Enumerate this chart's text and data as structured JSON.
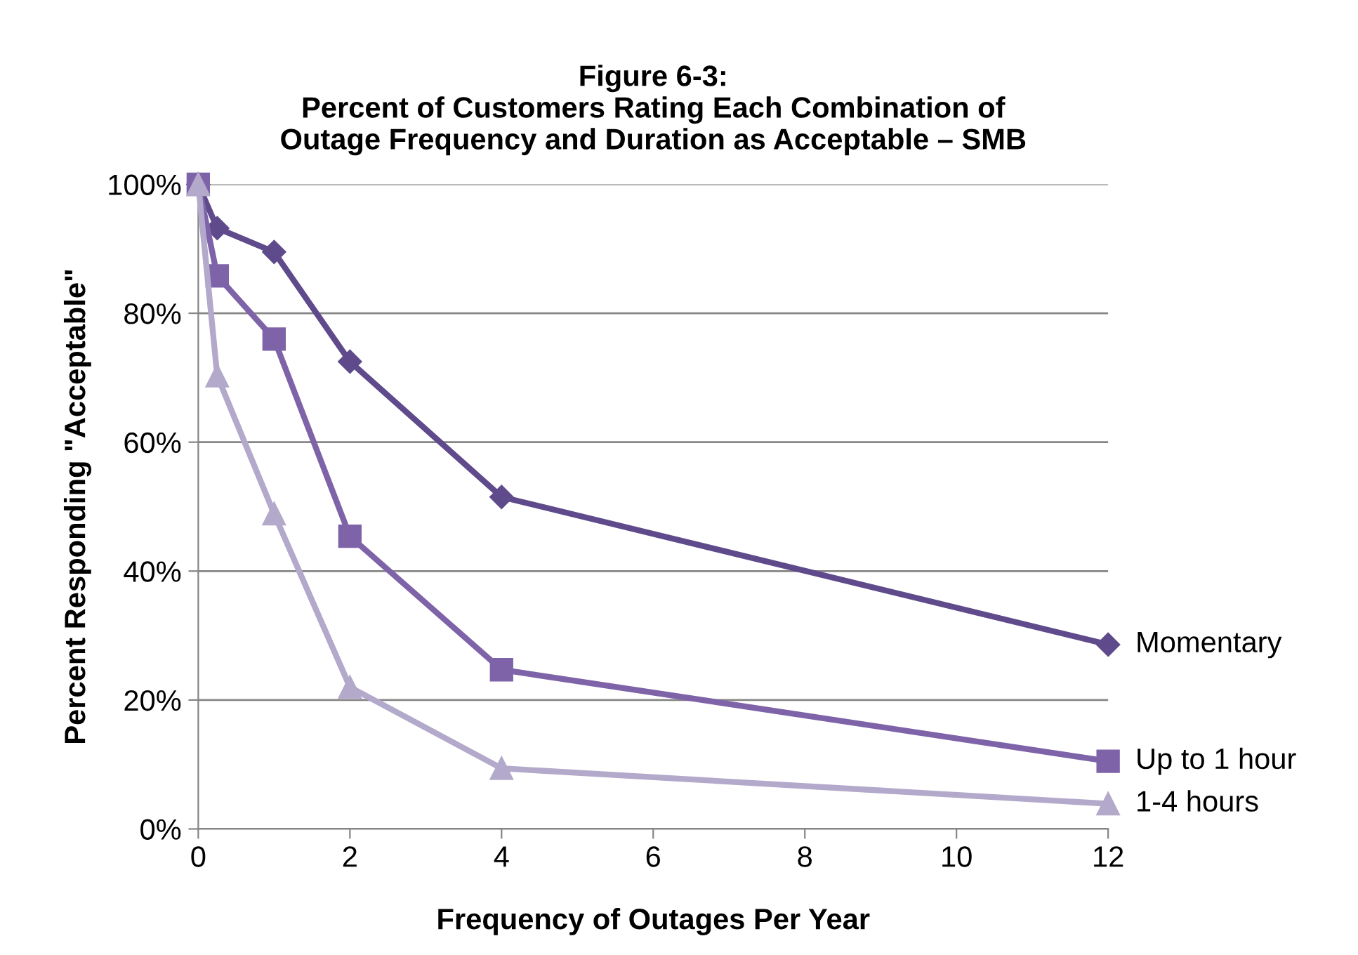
{
  "chart_data": {
    "type": "line",
    "title": "Figure 6-3:\nPercent of Customers Rating Each Combination of\nOutage Frequency and Duration as Acceptable – SMB",
    "xlabel": "Frequency of Outages Per Year",
    "ylabel": "Percent Responding \"Acceptable\"",
    "x": [
      0,
      0.25,
      1,
      2,
      4,
      12
    ],
    "series": [
      {
        "name": "Momentary",
        "color": "#5f4b8b",
        "marker": "diamond",
        "values": [
          100,
          93.2,
          89.5,
          72.5,
          51.5,
          28.6
        ]
      },
      {
        "name": "Up to 1 hour",
        "color": "#7e63a8",
        "marker": "square",
        "values": [
          100,
          85.8,
          76,
          45.4,
          24.7,
          10.5
        ]
      },
      {
        "name": "1-4 hours",
        "color": "#b3a9cb",
        "marker": "triangle",
        "values": [
          100,
          70.3,
          48.9,
          22,
          9.4,
          3.9
        ]
      }
    ],
    "xlim": [
      0,
      12
    ],
    "xticks": [
      0,
      2,
      4,
      6,
      8,
      10,
      12
    ],
    "ylim": [
      0,
      100
    ],
    "yticks": [
      {
        "value": 0,
        "label": "0%"
      },
      {
        "value": 20,
        "label": "20%"
      },
      {
        "value": 40,
        "label": "40%"
      },
      {
        "value": 60,
        "label": "60%"
      },
      {
        "value": 80,
        "label": "80%"
      },
      {
        "value": 100,
        "label": "100%"
      }
    ],
    "grid": "y",
    "legend": false,
    "line_style": "solid"
  }
}
